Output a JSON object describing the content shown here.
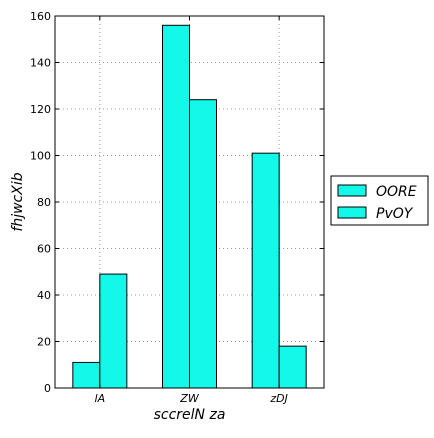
{
  "chart_data": {
    "type": "bar",
    "categories": [
      "lA",
      "ZW",
      "zDJ"
    ],
    "series": [
      {
        "name": "OORE",
        "values": [
          11,
          156,
          101
        ],
        "color": "#13f8e8"
      },
      {
        "name": "PvOY",
        "values": [
          49,
          124,
          18
        ],
        "color": "#13f8e8"
      }
    ],
    "xlabel": "sccrelN za",
    "ylabel": "fhjwcXib",
    "ylim": [
      0,
      160
    ],
    "yticks": [
      0,
      20,
      40,
      60,
      80,
      100,
      120,
      140,
      160
    ],
    "grid": true,
    "legend_position": "outside-right"
  }
}
